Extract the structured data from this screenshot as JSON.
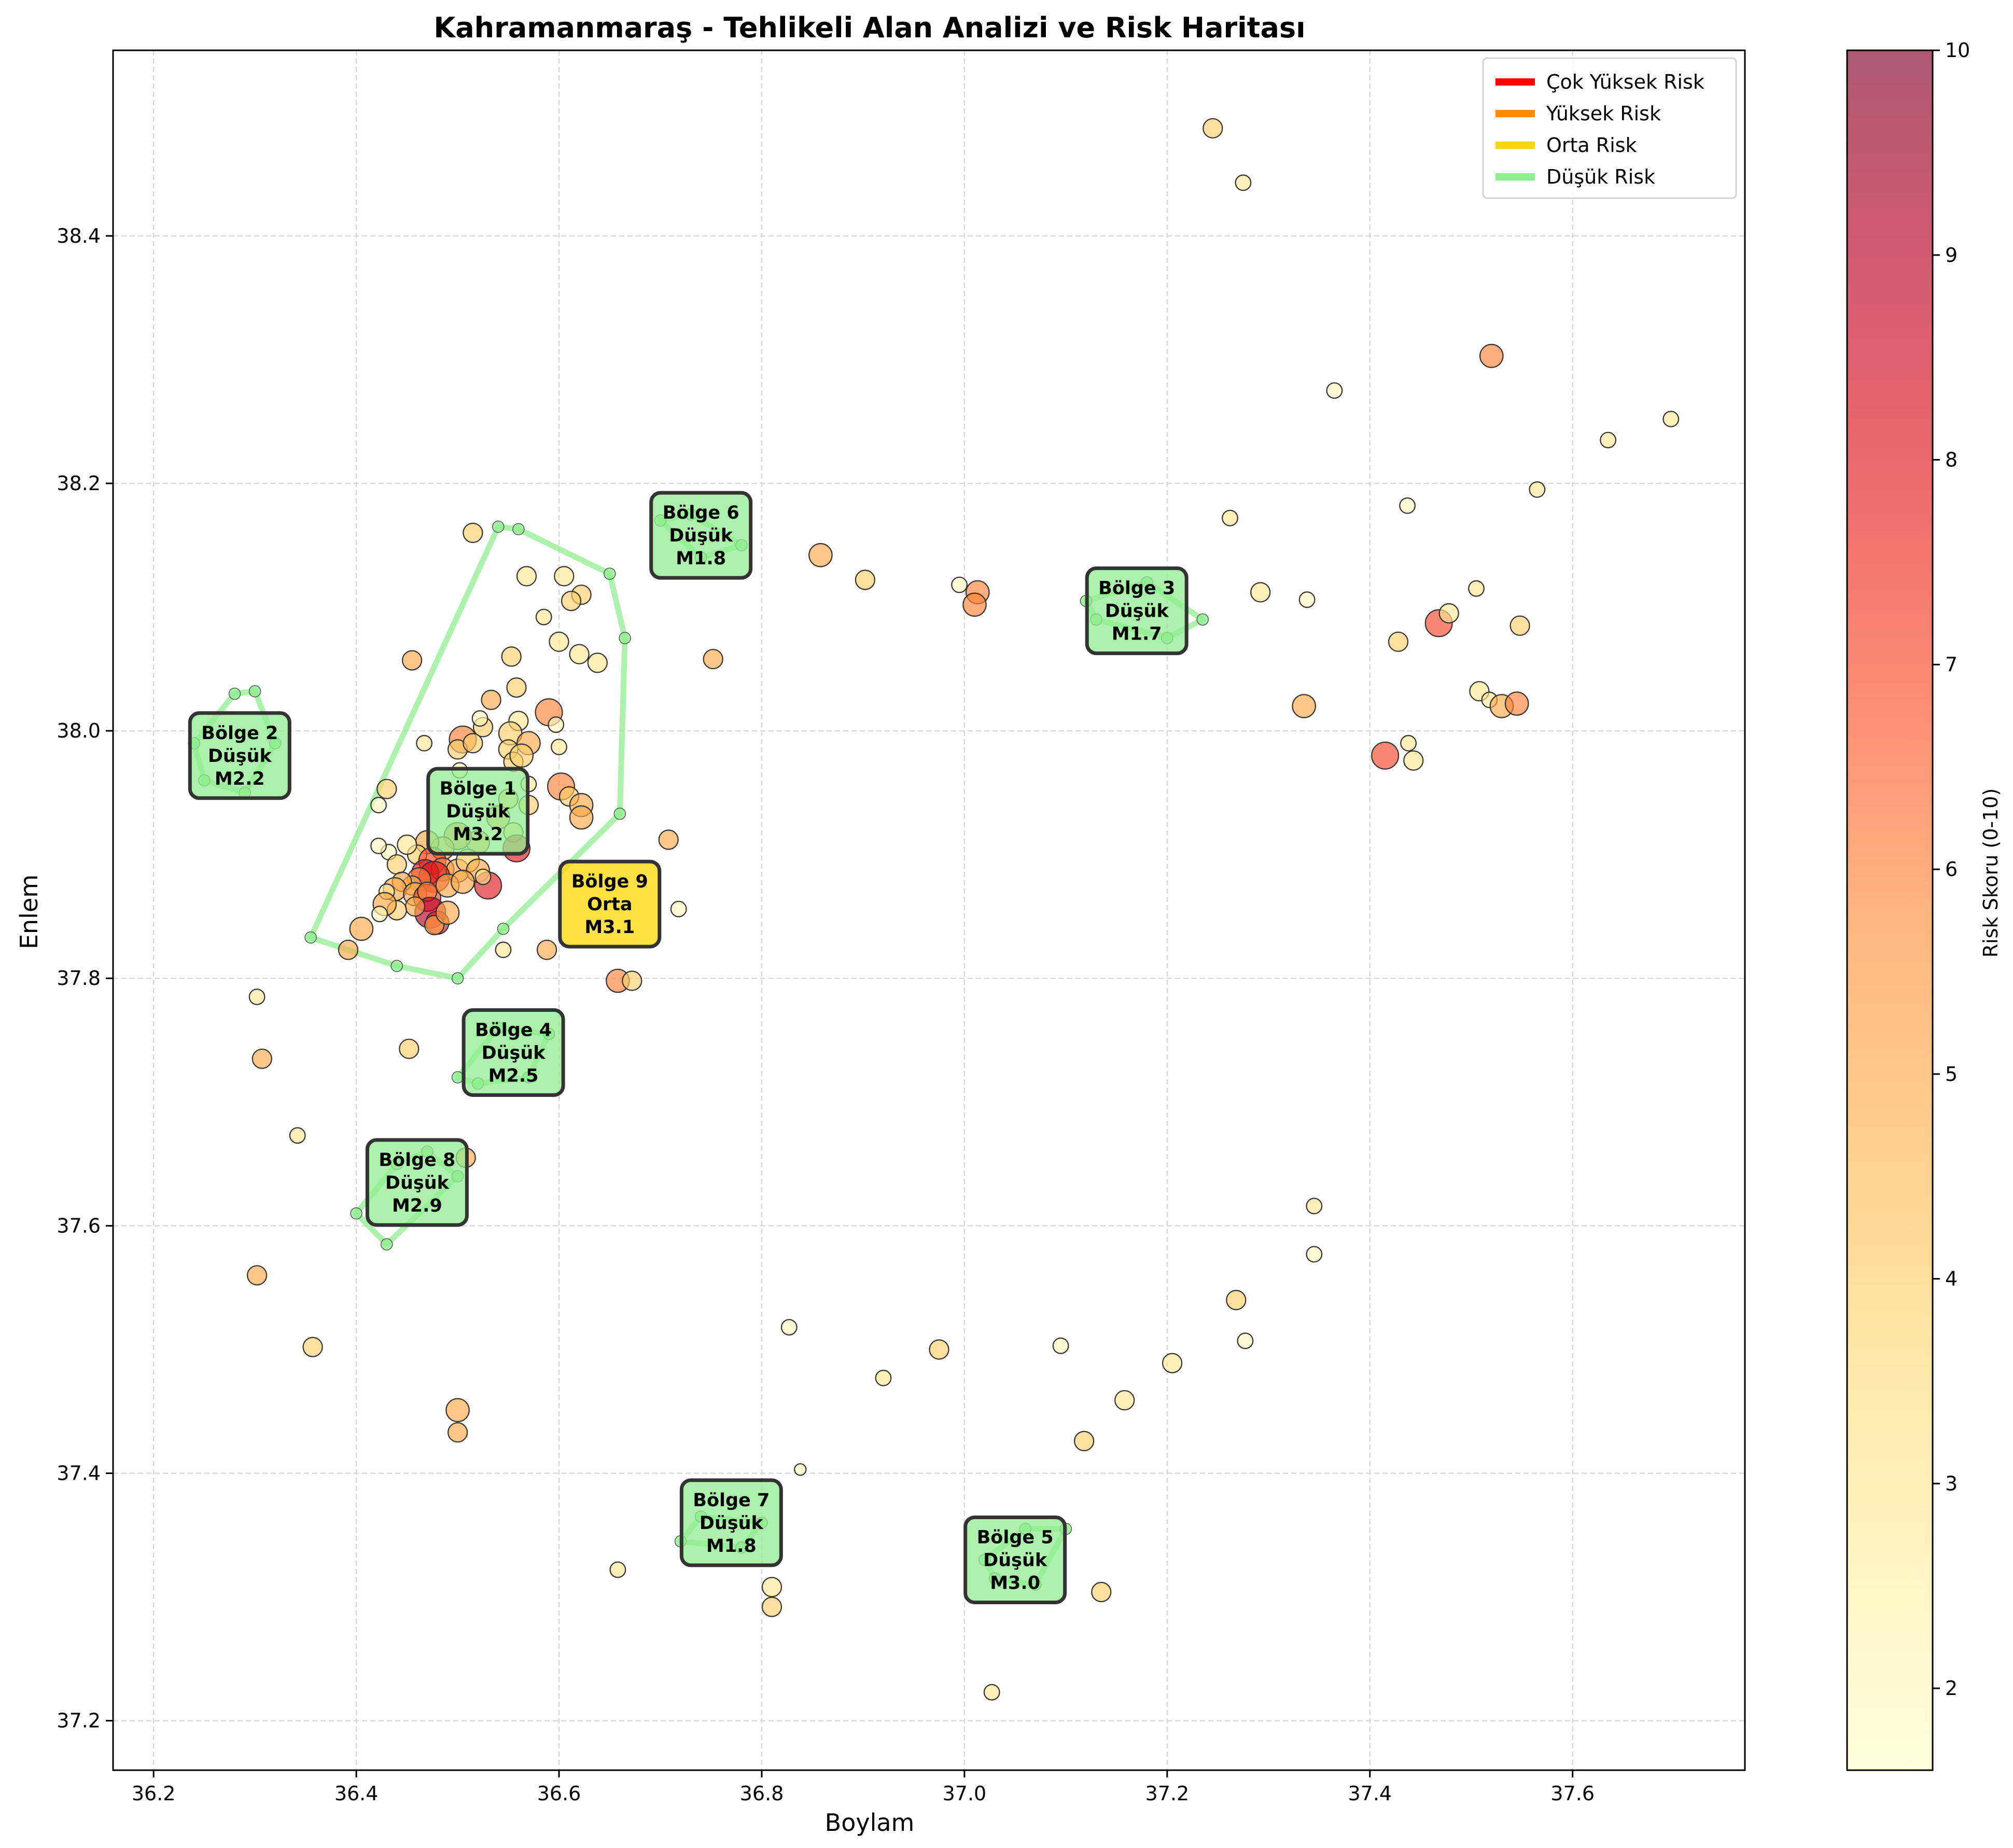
{
  "chart_data": {
    "type": "scatter",
    "title": "Kahramanmaraş - Tehlikeli Alan Analizi ve Risk Haritası",
    "xlabel": "Boylam",
    "ylabel": "Enlem",
    "xlim": [
      36.16,
      37.77
    ],
    "ylim": [
      37.16,
      38.55
    ],
    "xticks": [
      36.2,
      36.4,
      36.6,
      36.8,
      37.0,
      37.2,
      37.4,
      37.6
    ],
    "yticks": [
      37.2,
      37.4,
      37.6,
      37.8,
      38.0,
      38.2,
      38.4
    ],
    "xtick_labels": [
      "36.2",
      "36.4",
      "36.6",
      "36.8",
      "37.0",
      "37.2",
      "37.4",
      "37.6"
    ],
    "ytick_labels": [
      "37.2",
      "37.4",
      "37.6",
      "37.8",
      "38.0",
      "38.2",
      "38.4"
    ],
    "grid": true,
    "colorbar": {
      "label": "Risk Skoru (0-10)",
      "range": [
        1.6,
        10
      ],
      "ticks": [
        2,
        3,
        4,
        5,
        6,
        7,
        8,
        9,
        10
      ],
      "tick_labels": [
        "2",
        "3",
        "4",
        "5",
        "6",
        "7",
        "8",
        "9",
        "10"
      ],
      "colormap": "YlOrRd"
    },
    "legend": {
      "placement": "top-right",
      "entries": [
        {
          "label": "Çok Yüksek Risk",
          "color": "#ff0000"
        },
        {
          "label": "Yüksek Risk",
          "color": "#ff8c00"
        },
        {
          "label": "Orta Risk",
          "color": "#ffd700"
        },
        {
          "label": "Düşük Risk",
          "color": "#90ee90"
        }
      ]
    },
    "zones": [
      {
        "name": "Bölge 1",
        "risk": "Düşük",
        "mag": "M3.2",
        "x": 36.52,
        "y": 37.935,
        "hull": [
          [
            36.355,
            37.833
          ],
          [
            36.54,
            38.165
          ],
          [
            36.56,
            38.163
          ],
          [
            36.65,
            38.127
          ],
          [
            36.665,
            38.075
          ],
          [
            36.66,
            37.933
          ],
          [
            36.545,
            37.84
          ],
          [
            36.5,
            37.8
          ],
          [
            36.44,
            37.81
          ]
        ]
      },
      {
        "name": "Bölge 2",
        "risk": "Düşük",
        "mag": "M2.2",
        "x": 36.285,
        "y": 37.98,
        "hull": [
          [
            36.24,
            37.99
          ],
          [
            36.28,
            38.03
          ],
          [
            36.3,
            38.032
          ],
          [
            36.32,
            37.99
          ],
          [
            36.29,
            37.95
          ],
          [
            36.25,
            37.96
          ]
        ]
      },
      {
        "name": "Bölge 3",
        "risk": "Düşük",
        "mag": "M1.7",
        "x": 37.17,
        "y": 38.097,
        "hull": [
          [
            37.12,
            38.105
          ],
          [
            37.18,
            38.12
          ],
          [
            37.235,
            38.09
          ],
          [
            37.2,
            38.075
          ],
          [
            37.13,
            38.09
          ]
        ]
      },
      {
        "name": "Bölge 4",
        "risk": "Düşük",
        "mag": "M2.5",
        "x": 36.555,
        "y": 37.74,
        "hull": [
          [
            36.5,
            37.72
          ],
          [
            36.54,
            37.76
          ],
          [
            36.59,
            37.755
          ],
          [
            36.57,
            37.72
          ],
          [
            36.52,
            37.715
          ]
        ]
      },
      {
        "name": "Bölge 5",
        "risk": "Düşük",
        "mag": "M3.0",
        "x": 37.05,
        "y": 37.33,
        "hull": [
          [
            37.02,
            37.33
          ],
          [
            37.06,
            37.355
          ],
          [
            37.1,
            37.355
          ],
          [
            37.07,
            37.31
          ],
          [
            37.03,
            37.315
          ]
        ]
      },
      {
        "name": "Bölge 6",
        "risk": "Düşük",
        "mag": "M1.8",
        "x": 36.74,
        "y": 38.158,
        "hull": [
          [
            36.7,
            38.17
          ],
          [
            36.73,
            38.175
          ],
          [
            36.78,
            38.15
          ],
          [
            36.74,
            38.14
          ]
        ]
      },
      {
        "name": "Bölge 7",
        "risk": "Düşük",
        "mag": "M1.8",
        "x": 36.77,
        "y": 37.36,
        "hull": [
          [
            36.72,
            37.345
          ],
          [
            36.74,
            37.365
          ],
          [
            36.8,
            37.36
          ],
          [
            36.78,
            37.34
          ]
        ]
      },
      {
        "name": "Bölge 8",
        "risk": "Düşük",
        "mag": "M2.9",
        "x": 36.46,
        "y": 37.635,
        "hull": [
          [
            36.4,
            37.61
          ],
          [
            36.43,
            37.585
          ],
          [
            36.5,
            37.64
          ],
          [
            36.47,
            37.66
          ],
          [
            36.44,
            37.65
          ]
        ]
      },
      {
        "name": "Bölge 9",
        "risk": "Orta",
        "mag": "M3.1",
        "x": 36.65,
        "y": 37.86,
        "hull": []
      }
    ],
    "points": [
      [
        37.245,
        38.487,
        5,
        4
      ],
      [
        37.275,
        38.443,
        4,
        3
      ],
      [
        37.52,
        38.303,
        6,
        6
      ],
      [
        37.365,
        38.275,
        4,
        2
      ],
      [
        37.697,
        38.252,
        4,
        3
      ],
      [
        37.635,
        38.235,
        4,
        3
      ],
      [
        37.565,
        38.195,
        4,
        3
      ],
      [
        37.437,
        38.182,
        4,
        2
      ],
      [
        37.262,
        38.172,
        4,
        3
      ],
      [
        36.858,
        38.142,
        6,
        5
      ],
      [
        36.902,
        38.122,
        5,
        4
      ],
      [
        36.995,
        38.118,
        4,
        2
      ],
      [
        37.013,
        38.112,
        6,
        6
      ],
      [
        37.01,
        38.102,
        6,
        6
      ],
      [
        37.292,
        38.112,
        5,
        3
      ],
      [
        37.338,
        38.106,
        4,
        2
      ],
      [
        37.505,
        38.115,
        4,
        3
      ],
      [
        37.468,
        38.087,
        7,
        7
      ],
      [
        37.478,
        38.095,
        5,
        3
      ],
      [
        37.548,
        38.085,
        5,
        4
      ],
      [
        37.428,
        38.072,
        5,
        4
      ],
      [
        37.335,
        38.02,
        6,
        5
      ],
      [
        37.508,
        38.032,
        5,
        3
      ],
      [
        37.518,
        38.025,
        4,
        3
      ],
      [
        37.53,
        38.02,
        6,
        5
      ],
      [
        37.545,
        38.022,
        6,
        6
      ],
      [
        37.415,
        37.98,
        7,
        7
      ],
      [
        37.438,
        37.99,
        4,
        3
      ],
      [
        37.443,
        37.976,
        5,
        3
      ],
      [
        36.752,
        38.058,
        5,
        5
      ],
      [
        36.708,
        37.912,
        5,
        5
      ],
      [
        36.718,
        37.856,
        4,
        2
      ],
      [
        36.658,
        37.798,
        6,
        6
      ],
      [
        36.672,
        37.798,
        5,
        4
      ],
      [
        36.588,
        37.823,
        5,
        5
      ],
      [
        36.515,
        38.16,
        5,
        4
      ],
      [
        36.568,
        38.125,
        5,
        3
      ],
      [
        36.605,
        38.125,
        5,
        3
      ],
      [
        36.622,
        38.11,
        5,
        4
      ],
      [
        36.612,
        38.105,
        5,
        4
      ],
      [
        36.585,
        38.092,
        4,
        3
      ],
      [
        36.6,
        38.072,
        5,
        3
      ],
      [
        36.62,
        38.062,
        5,
        3
      ],
      [
        36.638,
        38.055,
        5,
        3
      ],
      [
        36.455,
        38.057,
        5,
        5
      ],
      [
        36.533,
        38.025,
        5,
        5
      ],
      [
        36.558,
        38.035,
        5,
        4
      ],
      [
        36.553,
        38.06,
        5,
        4
      ],
      [
        36.59,
        38.015,
        7,
        6
      ],
      [
        36.597,
        38.005,
        4,
        2
      ],
      [
        36.56,
        38.008,
        5,
        3
      ],
      [
        36.525,
        38.003,
        5,
        4
      ],
      [
        36.522,
        38.01,
        4,
        2
      ],
      [
        36.552,
        37.998,
        6,
        4
      ],
      [
        36.57,
        37.99,
        6,
        5
      ],
      [
        36.55,
        37.985,
        5,
        4
      ],
      [
        36.555,
        37.975,
        5,
        4
      ],
      [
        36.563,
        37.98,
        6,
        4
      ],
      [
        36.505,
        37.993,
        7,
        6
      ],
      [
        36.5,
        37.985,
        5,
        4
      ],
      [
        36.515,
        37.99,
        5,
        4
      ],
      [
        36.467,
        37.99,
        4,
        3
      ],
      [
        36.6,
        37.987,
        4,
        3
      ],
      [
        36.602,
        37.955,
        7,
        6
      ],
      [
        36.57,
        37.957,
        4,
        3
      ],
      [
        36.61,
        37.947,
        5,
        4
      ],
      [
        36.622,
        37.94,
        6,
        5
      ],
      [
        36.622,
        37.93,
        6,
        5
      ],
      [
        36.57,
        37.94,
        5,
        4
      ],
      [
        36.502,
        37.968,
        4,
        2
      ],
      [
        36.43,
        37.953,
        5,
        4
      ],
      [
        36.422,
        37.94,
        4,
        2
      ],
      [
        36.55,
        37.945,
        5,
        4
      ],
      [
        36.54,
        37.93,
        6,
        5
      ],
      [
        36.555,
        37.918,
        5,
        4
      ],
      [
        36.558,
        37.905,
        7,
        8
      ],
      [
        36.52,
        37.91,
        6,
        5
      ],
      [
        36.5,
        37.915,
        7,
        6
      ],
      [
        36.485,
        37.905,
        6,
        5
      ],
      [
        36.47,
        37.91,
        6,
        5
      ],
      [
        36.46,
        37.9,
        5,
        4
      ],
      [
        36.45,
        37.908,
        5,
        3
      ],
      [
        36.432,
        37.902,
        4,
        2
      ],
      [
        36.422,
        37.907,
        4,
        2
      ],
      [
        36.44,
        37.892,
        5,
        4
      ],
      [
        36.475,
        37.895,
        7,
        7
      ],
      [
        36.485,
        37.888,
        6,
        6
      ],
      [
        36.5,
        37.887,
        6,
        5
      ],
      [
        36.51,
        37.895,
        6,
        4
      ],
      [
        36.52,
        37.887,
        6,
        5
      ],
      [
        36.468,
        37.885,
        7,
        8
      ],
      [
        36.477,
        37.882,
        8,
        8
      ],
      [
        36.462,
        37.88,
        6,
        6
      ],
      [
        36.455,
        37.875,
        5,
        5
      ],
      [
        36.445,
        37.878,
        5,
        5
      ],
      [
        36.438,
        37.872,
        6,
        5
      ],
      [
        36.43,
        37.87,
        4,
        3
      ],
      [
        36.458,
        37.868,
        6,
        5
      ],
      [
        36.47,
        37.865,
        7,
        7
      ],
      [
        36.47,
        37.87,
        5,
        6
      ],
      [
        36.49,
        37.875,
        6,
        5
      ],
      [
        36.505,
        37.878,
        6,
        5
      ],
      [
        36.53,
        37.875,
        7,
        8
      ],
      [
        36.525,
        37.882,
        4,
        3
      ],
      [
        36.473,
        37.853,
        8,
        9
      ],
      [
        36.48,
        37.845,
        6,
        8
      ],
      [
        36.477,
        37.843,
        5,
        5
      ],
      [
        36.458,
        37.858,
        5,
        5
      ],
      [
        36.44,
        37.855,
        5,
        4
      ],
      [
        36.428,
        37.86,
        6,
        5
      ],
      [
        36.423,
        37.852,
        4,
        2
      ],
      [
        36.49,
        37.853,
        6,
        5
      ],
      [
        36.405,
        37.84,
        6,
        5
      ],
      [
        36.392,
        37.823,
        5,
        5
      ],
      [
        36.545,
        37.823,
        4,
        3
      ],
      [
        36.302,
        37.785,
        4,
        3
      ],
      [
        36.307,
        37.735,
        5,
        5
      ],
      [
        36.452,
        37.743,
        5,
        4
      ],
      [
        36.342,
        37.673,
        4,
        3
      ],
      [
        36.508,
        37.655,
        5,
        5
      ],
      [
        36.302,
        37.56,
        5,
        5
      ],
      [
        36.357,
        37.502,
        5,
        4
      ],
      [
        36.5,
        37.451,
        6,
        5
      ],
      [
        36.5,
        37.433,
        5,
        5
      ],
      [
        37.345,
        37.616,
        4,
        3
      ],
      [
        37.345,
        37.577,
        4,
        2
      ],
      [
        37.268,
        37.54,
        5,
        4
      ],
      [
        37.277,
        37.507,
        4,
        2
      ],
      [
        36.827,
        37.518,
        4,
        2
      ],
      [
        36.975,
        37.5,
        5,
        4
      ],
      [
        37.095,
        37.503,
        4,
        2
      ],
      [
        37.205,
        37.489,
        5,
        3
      ],
      [
        36.92,
        37.477,
        4,
        3
      ],
      [
        37.158,
        37.459,
        5,
        3
      ],
      [
        37.118,
        37.426,
        5,
        4
      ],
      [
        36.838,
        37.403,
        3,
        2
      ],
      [
        36.81,
        37.308,
        5,
        3
      ],
      [
        36.81,
        37.292,
        5,
        4
      ],
      [
        36.658,
        37.322,
        4,
        3
      ],
      [
        37.135,
        37.304,
        5,
        4
      ],
      [
        37.027,
        37.223,
        4,
        3
      ]
    ]
  }
}
